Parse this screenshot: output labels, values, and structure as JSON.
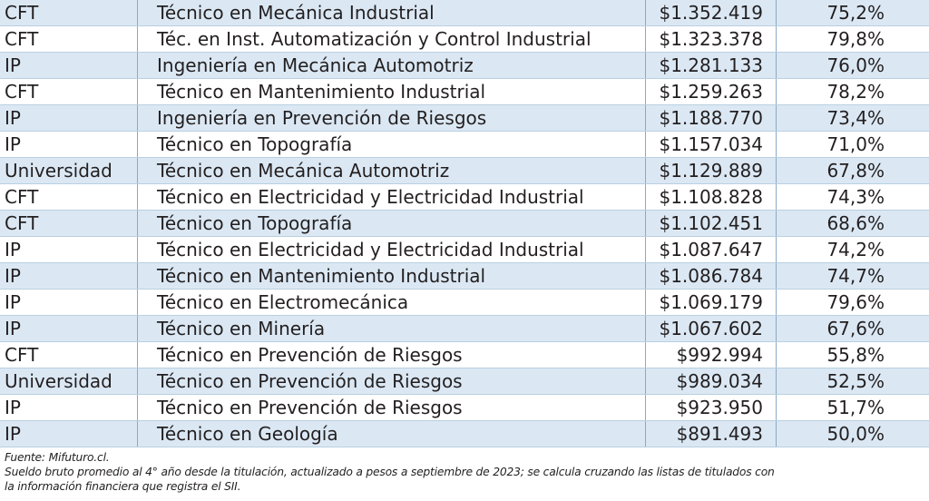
{
  "table": {
    "rows": [
      {
        "type": "CFT",
        "career": "Técnico en Mecánica Industrial",
        "salary": "$1.352.419",
        "rate": "75,2%"
      },
      {
        "type": "CFT",
        "career": "Téc. en Inst. Automatización y Control Industrial",
        "salary": "$1.323.378",
        "rate": "79,8%"
      },
      {
        "type": "IP",
        "career": "Ingeniería en Mecánica Automotriz",
        "salary": "$1.281.133",
        "rate": "76,0%"
      },
      {
        "type": "CFT",
        "career": "Técnico en Mantenimiento Industrial",
        "salary": "$1.259.263",
        "rate": "78,2%"
      },
      {
        "type": "IP",
        "career": "Ingeniería en Prevención de Riesgos",
        "salary": "$1.188.770",
        "rate": "73,4%"
      },
      {
        "type": "IP",
        "career": "Técnico en Topografía",
        "salary": "$1.157.034",
        "rate": "71,0%"
      },
      {
        "type": "Universidad",
        "career": "Técnico en Mecánica Automotriz",
        "salary": "$1.129.889",
        "rate": "67,8%"
      },
      {
        "type": "CFT",
        "career": "Técnico en Electricidad y Electricidad Industrial",
        "salary": "$1.108.828",
        "rate": "74,3%"
      },
      {
        "type": "CFT",
        "career": "Técnico en Topografía",
        "salary": "$1.102.451",
        "rate": "68,6%"
      },
      {
        "type": "IP",
        "career": "Técnico en Electricidad y Electricidad Industrial",
        "salary": "$1.087.647",
        "rate": "74,2%"
      },
      {
        "type": "IP",
        "career": "Técnico en Mantenimiento Industrial",
        "salary": "$1.086.784",
        "rate": "74,7%"
      },
      {
        "type": "IP",
        "career": "Técnico en Electromecánica",
        "salary": "$1.069.179",
        "rate": "79,6%"
      },
      {
        "type": "IP",
        "career": "Técnico en Minería",
        "salary": "$1.067.602",
        "rate": "67,6%"
      },
      {
        "type": "CFT",
        "career": "Técnico en Prevención de Riesgos",
        "salary": "$992.994",
        "rate": "55,8%"
      },
      {
        "type": "Universidad",
        "career": "Técnico en Prevención de Riesgos",
        "salary": "$989.034",
        "rate": "52,5%"
      },
      {
        "type": "IP",
        "career": "Técnico en Prevención de Riesgos",
        "salary": "$923.950",
        "rate": "51,7%"
      },
      {
        "type": "IP",
        "career": "Técnico en Geología",
        "salary": "$891.493",
        "rate": "50,0%"
      }
    ]
  },
  "notes": {
    "source": "Fuente: Mifuturo.cl.",
    "line1": "Sueldo bruto promedio al 4° año desde la titulación, actualizado a pesos a septiembre de 2023; se calcula cruzando las listas de titulados con",
    "line2": "la información financiera que registra el SII."
  },
  "colors": {
    "row_shade": "#dbe8f4",
    "row_white": "#ffffff",
    "text": "#231f20",
    "grid_line": "#8aa9c4"
  }
}
